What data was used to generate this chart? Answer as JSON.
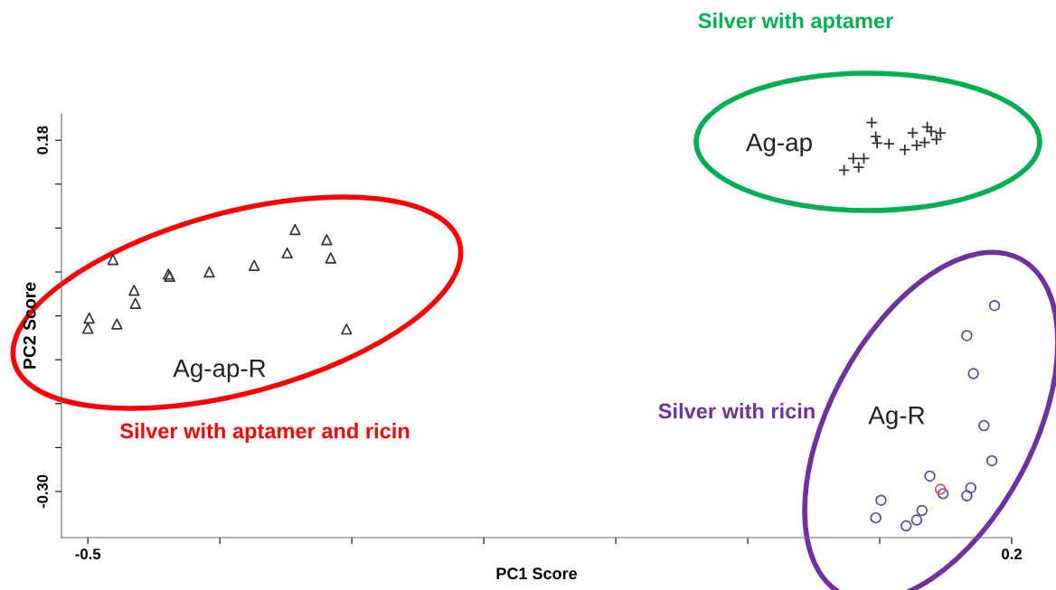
{
  "chart_data": {
    "type": "scatter",
    "xlabel": "PC1 Score",
    "ylabel": "PC2 Score",
    "xlim": [
      -0.52,
      0.2
    ],
    "ylim": [
      -0.363,
      0.216
    ],
    "xticks": [
      -0.5,
      {
        "value": -0.4,
        "label": null
      },
      {
        "value": -0.3,
        "label": null
      },
      {
        "value": -0.2,
        "label": null
      },
      {
        "value": -0.1,
        "label": null
      },
      {
        "value": 0.0,
        "label": null
      },
      {
        "value": 0.1,
        "label": null
      },
      0.2
    ],
    "yticks": [
      {
        "value": -0.3,
        "label": "-0.30"
      },
      {
        "value": -0.24,
        "label": null
      },
      {
        "value": -0.18,
        "label": null
      },
      {
        "value": -0.12,
        "label": null
      },
      {
        "value": -0.06,
        "label": null
      },
      {
        "value": 0.0,
        "label": null
      },
      {
        "value": 0.06,
        "label": null
      },
      {
        "value": 0.12,
        "label": null
      },
      {
        "value": 0.18,
        "label": "0.18"
      }
    ],
    "grid": false,
    "series": [
      {
        "name": "Ag-ap-R",
        "color": "#333333",
        "marker": "triangle",
        "x": [
          -0.499,
          -0.5,
          -0.481,
          -0.478,
          -0.465,
          -0.464,
          -0.439,
          -0.438,
          -0.408,
          -0.374,
          -0.349,
          -0.343,
          -0.319,
          -0.316,
          -0.304
        ],
        "values": [
          -0.063,
          -0.077,
          0.017,
          -0.071,
          -0.025,
          -0.043,
          -0.003,
          -0.006,
          0.0,
          0.009,
          0.026,
          0.058,
          0.044,
          0.019,
          -0.078
        ]
      },
      {
        "name": "Ag-ap",
        "color": "#333333",
        "marker": "cross",
        "x": [
          0.094,
          0.097,
          0.098,
          0.107,
          0.08,
          0.088,
          0.073,
          0.084,
          0.119,
          0.125,
          0.128,
          0.134,
          0.136,
          0.139,
          0.143,
          0.146
        ],
        "values": [
          0.204,
          0.185,
          0.176,
          0.175,
          0.155,
          0.155,
          0.139,
          0.143,
          0.167,
          0.19,
          0.173,
          0.177,
          0.198,
          0.192,
          0.181,
          0.19
        ]
      },
      {
        "name": "Ag-R",
        "color": "#4a4aa8",
        "marker": "circle",
        "x": [
          0.187,
          0.166,
          0.171,
          0.179,
          0.185,
          0.138,
          0.169,
          0.166,
          0.148,
          0.101,
          0.097,
          0.132,
          0.128,
          0.12
        ],
        "values": [
          -0.046,
          -0.087,
          -0.139,
          -0.21,
          -0.258,
          -0.279,
          -0.295,
          -0.306,
          -0.303,
          -0.312,
          -0.336,
          -0.326,
          -0.339,
          -0.347
        ]
      },
      {
        "color": "#e05050",
        "marker": "circle",
        "x": [
          0.146
        ],
        "values": [
          -0.297
        ]
      }
    ],
    "annotations": [
      "Silver with aptamer",
      "Silver with aptamer and ricin",
      "Silver with ricin"
    ]
  }
}
